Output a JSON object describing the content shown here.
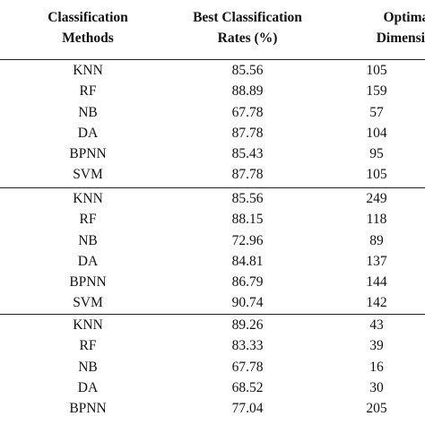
{
  "table": {
    "headers": [
      [
        "Classification",
        "Methods"
      ],
      [
        "Best Classification",
        "Rates (%)"
      ],
      [
        "Optimal",
        "Dimension"
      ]
    ],
    "groups": [
      {
        "rows": [
          [
            "KNN",
            "85.56",
            "105"
          ],
          [
            "RF",
            "88.89",
            "159"
          ],
          [
            "NB",
            "67.78",
            "57"
          ],
          [
            "DA",
            "87.78",
            "104"
          ],
          [
            "BPNN",
            "85.43",
            "95"
          ],
          [
            "SVM",
            "87.78",
            "105"
          ]
        ]
      },
      {
        "rows": [
          [
            "KNN",
            "85.56",
            "249"
          ],
          [
            "RF",
            "88.15",
            "118"
          ],
          [
            "NB",
            "72.96",
            "89"
          ],
          [
            "DA",
            "84.81",
            "137"
          ],
          [
            "BPNN",
            "86.79",
            "144"
          ],
          [
            "SVM",
            "90.74",
            "142"
          ]
        ]
      },
      {
        "rows": [
          [
            "KNN",
            "89.26",
            "43"
          ],
          [
            "RF",
            "83.33",
            "39"
          ],
          [
            "NB",
            "67.78",
            "16"
          ],
          [
            "DA",
            "68.52",
            "30"
          ],
          [
            "BPNN",
            "77.04",
            "205"
          ]
        ]
      }
    ]
  }
}
